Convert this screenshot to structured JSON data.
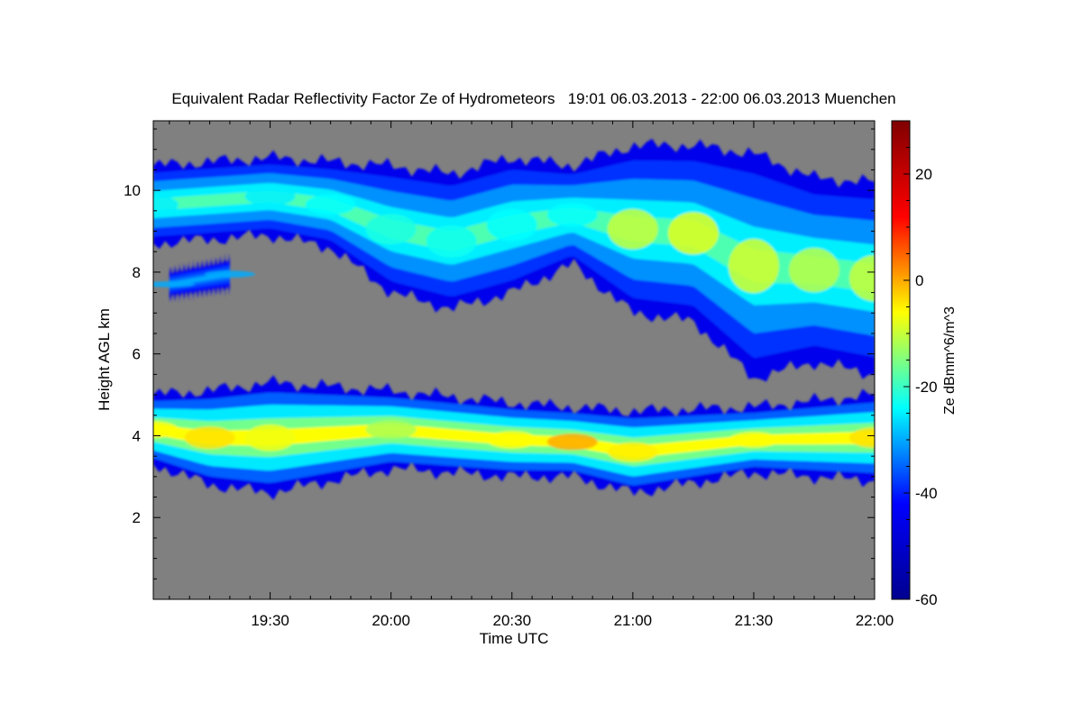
{
  "chart_data": {
    "type": "heatmap",
    "title": "Equivalent Radar Reflectivity Factor Ze of Hydrometeors   19:01 06.03.2013 - 22:00 06.03.2013 Muenchen",
    "xlabel": "Time UTC",
    "ylabel": "Height AGL km",
    "colorbar_label": "Ze dBmm^6/m^3",
    "x_range": [
      "19:01",
      "22:00"
    ],
    "x_tick_labels": [
      "19:30",
      "20:00",
      "20:30",
      "21:00",
      "21:30",
      "22:00"
    ],
    "ylim": [
      0,
      11.7
    ],
    "y_ticks": [
      2,
      4,
      6,
      8,
      10
    ],
    "colorbar_range": [
      -60,
      30
    ],
    "colorbar_ticks": [
      -60,
      -40,
      -20,
      0,
      20
    ],
    "colormap": [
      "#00008f",
      "#0000ff",
      "#00ffff",
      "#ffff00",
      "#ff0000",
      "#800000"
    ],
    "background_color": "#808080",
    "layers": [
      {
        "name": "lower",
        "segments": [
          {
            "x": "19:01",
            "base_km": 3.3,
            "top_km": 5.0,
            "peak_dbz": -6
          },
          {
            "x": "19:15",
            "base_km": 2.8,
            "top_km": 5.1,
            "peak_dbz": -4
          },
          {
            "x": "19:30",
            "base_km": 2.6,
            "top_km": 5.3,
            "peak_dbz": -7
          },
          {
            "x": "20:00",
            "base_km": 3.2,
            "top_km": 5.1,
            "peak_dbz": -12
          },
          {
            "x": "20:30",
            "base_km": 3.0,
            "top_km": 4.8,
            "peak_dbz": -6
          },
          {
            "x": "20:45",
            "base_km": 3.0,
            "top_km": 4.7,
            "peak_dbz": 0
          },
          {
            "x": "21:00",
            "base_km": 2.6,
            "top_km": 4.6,
            "peak_dbz": -5
          },
          {
            "x": "21:30",
            "base_km": 3.1,
            "top_km": 4.7,
            "peak_dbz": -6
          },
          {
            "x": "22:00",
            "base_km": 2.9,
            "top_km": 5.0,
            "peak_dbz": -4
          }
        ]
      },
      {
        "name": "upper",
        "segments": [
          {
            "x": "19:01",
            "base_km": 8.7,
            "top_km": 10.6,
            "peak_dbz": -25
          },
          {
            "x": "19:30",
            "base_km": 8.9,
            "top_km": 10.8,
            "peak_dbz": -25
          },
          {
            "x": "19:45",
            "base_km": 8.6,
            "top_km": 10.7,
            "peak_dbz": -24
          },
          {
            "x": "20:00",
            "base_km": 7.5,
            "top_km": 10.6,
            "peak_dbz": -22
          },
          {
            "x": "20:15",
            "base_km": 7.1,
            "top_km": 10.4,
            "peak_dbz": -23
          },
          {
            "x": "20:30",
            "base_km": 7.5,
            "top_km": 10.8,
            "peak_dbz": -24
          },
          {
            "x": "20:45",
            "base_km": 8.2,
            "top_km": 10.6,
            "peak_dbz": -24
          },
          {
            "x": "21:00",
            "base_km": 7.0,
            "top_km": 11.1,
            "peak_dbz": -10
          },
          {
            "x": "21:15",
            "base_km": 6.8,
            "top_km": 11.1,
            "peak_dbz": -8
          },
          {
            "x": "21:30",
            "base_km": 5.4,
            "top_km": 10.9,
            "peak_dbz": -9
          },
          {
            "x": "21:45",
            "base_km": 5.8,
            "top_km": 10.3,
            "peak_dbz": -11
          },
          {
            "x": "22:00",
            "base_km": 5.5,
            "top_km": 10.2,
            "peak_dbz": -10
          }
        ]
      },
      {
        "name": "patch",
        "segments": [
          {
            "x": "19:05",
            "base_km": 7.4,
            "top_km": 8.0,
            "peak_dbz": -30
          },
          {
            "x": "19:20",
            "base_km": 7.6,
            "top_km": 8.3,
            "peak_dbz": -30
          }
        ]
      }
    ]
  }
}
